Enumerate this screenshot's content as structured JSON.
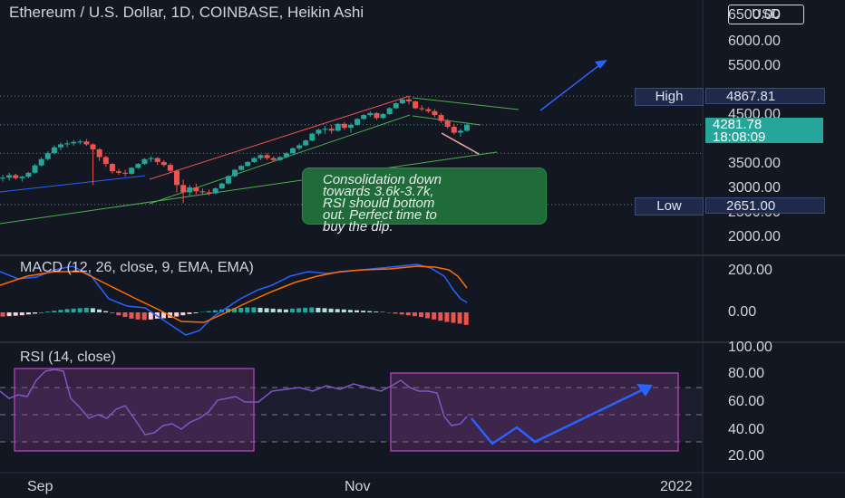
{
  "header": {
    "title": "Ethereum / U.S. Dollar, 1D, COINBASE, Heikin Ashi",
    "currency": "USD"
  },
  "price_axis": {
    "labels": [
      "6500.00",
      "6000.00",
      "5500.00",
      "4500.00",
      "3500.00",
      "3000.00",
      "2500.00",
      "2000.00"
    ]
  },
  "markers": {
    "high_label": "High",
    "high_value": "4867.81",
    "low_label": "Low",
    "low_value": "2651.00",
    "last_price": "4281.78",
    "countdown": "18:08:09"
  },
  "annotation": {
    "lines": [
      "Consolidation down",
      "towards 3.6k-3.7k,",
      "RSI should bottom",
      "out. Perfect time to",
      "buy the dip."
    ]
  },
  "macd": {
    "label": "MACD (12, 26, close, 9, EMA, EMA)",
    "axis": [
      "200.00",
      "0.00"
    ]
  },
  "rsi": {
    "label": "RSI (14, close)",
    "axis": [
      "100.00",
      "80.00",
      "60.00",
      "40.00",
      "20.00"
    ]
  },
  "time_axis": [
    "Sep",
    "Nov",
    "2022"
  ],
  "colors": {
    "up": "#26a69a",
    "down": "#ef5350",
    "macd_line": "#2962ff",
    "signal_line": "#ff6d00",
    "rsi_line": "#7e57c2",
    "rsi_box": "#a23fa8",
    "arrow": "#2962ff",
    "channel": "#ef5350",
    "support": "#4caf50"
  },
  "chart_data": {
    "type": "candlestick",
    "style": "Heikin Ashi",
    "interval": "1D",
    "ylim": [
      1800,
      6600
    ],
    "high": 4867.81,
    "low": 2651.0,
    "last": 4281.78,
    "candles_ohlc": [
      [
        3180,
        3260,
        3120,
        3200
      ],
      [
        3200,
        3300,
        3140,
        3250
      ],
      [
        3250,
        3280,
        3160,
        3190
      ],
      [
        3190,
        3240,
        3120,
        3220
      ],
      [
        3220,
        3320,
        3190,
        3300
      ],
      [
        3300,
        3480,
        3280,
        3450
      ],
      [
        3450,
        3620,
        3420,
        3580
      ],
      [
        3580,
        3740,
        3550,
        3700
      ],
      [
        3700,
        3860,
        3680,
        3820
      ],
      [
        3820,
        3920,
        3760,
        3880
      ],
      [
        3880,
        3960,
        3820,
        3900
      ],
      [
        3900,
        3970,
        3850,
        3930
      ],
      [
        3930,
        3980,
        3880,
        3940
      ],
      [
        3940,
        3990,
        3850,
        3880
      ],
      [
        3880,
        3900,
        3050,
        3780
      ],
      [
        3780,
        3800,
        3540,
        3620
      ],
      [
        3620,
        3650,
        3420,
        3480
      ],
      [
        3480,
        3500,
        3280,
        3330
      ],
      [
        3330,
        3380,
        3260,
        3300
      ],
      [
        3300,
        3360,
        3220,
        3280
      ],
      [
        3280,
        3420,
        3260,
        3400
      ],
      [
        3400,
        3500,
        3380,
        3480
      ],
      [
        3480,
        3600,
        3460,
        3580
      ],
      [
        3580,
        3640,
        3520,
        3600
      ],
      [
        3600,
        3620,
        3460,
        3520
      ],
      [
        3520,
        3560,
        3420,
        3460
      ],
      [
        3460,
        3500,
        3300,
        3340
      ],
      [
        3340,
        3360,
        2900,
        3050
      ],
      [
        3050,
        3160,
        2680,
        2900
      ],
      [
        2900,
        3050,
        2820,
        3000
      ],
      [
        3000,
        3080,
        2860,
        2920
      ],
      [
        2920,
        2980,
        2860,
        2900
      ],
      [
        2900,
        2960,
        2840,
        2880
      ],
      [
        2880,
        3000,
        2860,
        2980
      ],
      [
        2980,
        3100,
        2960,
        3080
      ],
      [
        3080,
        3250,
        3060,
        3230
      ],
      [
        3230,
        3380,
        3210,
        3360
      ],
      [
        3360,
        3460,
        3340,
        3440
      ],
      [
        3440,
        3540,
        3420,
        3520
      ],
      [
        3520,
        3620,
        3500,
        3600
      ],
      [
        3600,
        3680,
        3560,
        3660
      ],
      [
        3660,
        3700,
        3560,
        3600
      ],
      [
        3600,
        3640,
        3520,
        3560
      ],
      [
        3560,
        3640,
        3540,
        3620
      ],
      [
        3620,
        3720,
        3600,
        3700
      ],
      [
        3700,
        3820,
        3680,
        3800
      ],
      [
        3800,
        3900,
        3760,
        3860
      ],
      [
        3860,
        3980,
        3840,
        3960
      ],
      [
        3960,
        4120,
        3940,
        4100
      ],
      [
        4100,
        4200,
        4060,
        4180
      ],
      [
        4180,
        4260,
        4100,
        4200
      ],
      [
        4200,
        4280,
        4100,
        4160
      ],
      [
        4160,
        4320,
        4140,
        4300
      ],
      [
        4300,
        4340,
        4180,
        4220
      ],
      [
        4220,
        4320,
        4120,
        4280
      ],
      [
        4280,
        4420,
        4260,
        4400
      ],
      [
        4400,
        4500,
        4380,
        4480
      ],
      [
        4480,
        4560,
        4440,
        4520
      ],
      [
        4520,
        4540,
        4380,
        4420
      ],
      [
        4420,
        4520,
        4400,
        4500
      ],
      [
        4500,
        4640,
        4480,
        4620
      ],
      [
        4620,
        4740,
        4600,
        4720
      ],
      [
        4720,
        4820,
        4700,
        4800
      ],
      [
        4800,
        4868,
        4700,
        4760
      ],
      [
        4760,
        4780,
        4600,
        4620
      ],
      [
        4620,
        4680,
        4560,
        4600
      ],
      [
        4600,
        4640,
        4520,
        4560
      ],
      [
        4560,
        4600,
        4440,
        4480
      ],
      [
        4480,
        4520,
        4320,
        4360
      ],
      [
        4360,
        4400,
        4200,
        4240
      ],
      [
        4240,
        4300,
        4080,
        4120
      ],
      [
        4120,
        4200,
        4040,
        4160
      ],
      [
        4160,
        4300,
        4140,
        4282
      ]
    ]
  }
}
